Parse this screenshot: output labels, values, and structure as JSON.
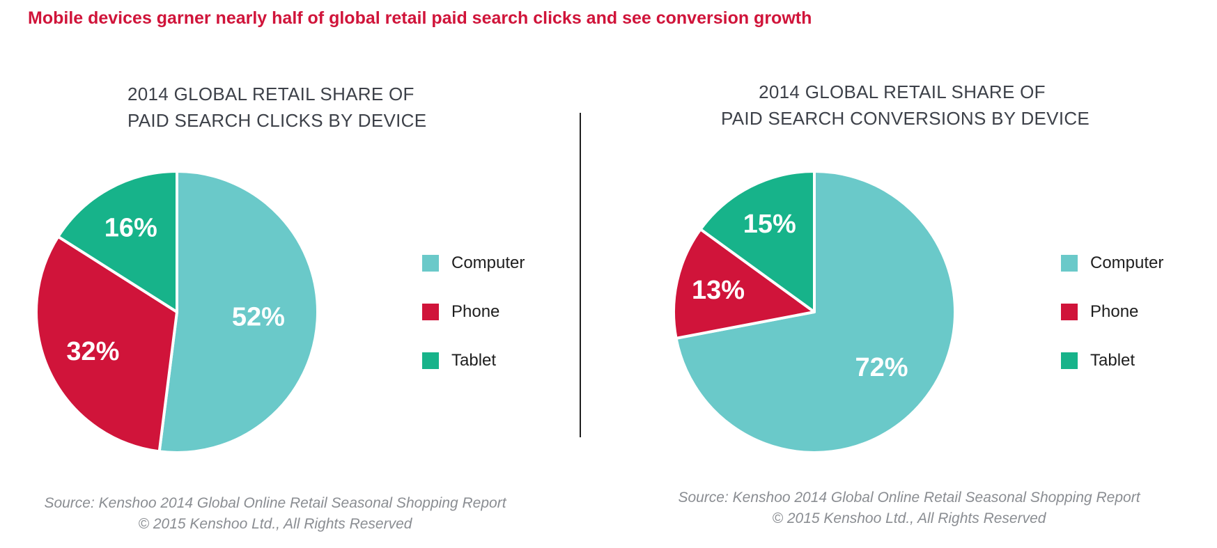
{
  "headline": "Mobile devices garner nearly half of global retail paid search clicks and see conversion growth",
  "colors": {
    "computer": "#6ac9c9",
    "phone": "#d0143a",
    "tablet": "#17b38a",
    "headline": "#d0143a"
  },
  "chart_data": [
    {
      "type": "pie",
      "title_lines": [
        "2014 GLOBAL RETAIL SHARE OF",
        "PAID SEARCH CLICKS BY DEVICE"
      ],
      "categories": [
        "Computer",
        "Phone",
        "Tablet"
      ],
      "values": [
        52,
        32,
        16
      ],
      "value_labels": [
        "52%",
        "32%",
        "16%"
      ],
      "legend_position": "right",
      "source_lines": [
        "Source: Kenshoo 2014 Global Online Retail Seasonal Shopping Report",
        "© 2015 Kenshoo Ltd., All Rights Reserved"
      ]
    },
    {
      "type": "pie",
      "title_lines": [
        "2014 GLOBAL RETAIL SHARE OF",
        "PAID SEARCH CONVERSIONS BY DEVICE"
      ],
      "categories": [
        "Computer",
        "Phone",
        "Tablet"
      ],
      "values": [
        72,
        13,
        15
      ],
      "value_labels": [
        "72%",
        "13%",
        "15%"
      ],
      "legend_position": "right",
      "source_lines": [
        "Source: Kenshoo 2014 Global Online Retail Seasonal Shopping Report",
        "© 2015 Kenshoo Ltd., All Rights Reserved"
      ]
    }
  ]
}
